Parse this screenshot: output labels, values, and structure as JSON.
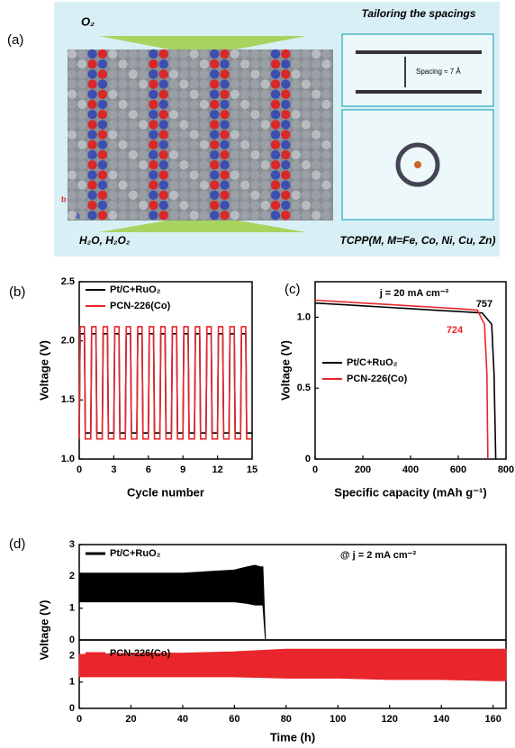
{
  "illustration": {
    "panel": "(a)",
    "top_label": "O₂",
    "bottom_label": "H₂O, H₂O₂",
    "right_title": "Tailoring the spacings",
    "spacing_label": "Spacing ≈ 7 Å",
    "right_caption": "TCPP(M, M=Fe, Co, Ni, Cu, Zn)",
    "axis_b": "b",
    "axis_a": "a"
  },
  "chart_data": [
    {
      "type": "line",
      "panel": "(b)",
      "x_label": "Cycle number",
      "y_label": "Voltage (V)",
      "xlim": [
        0,
        15
      ],
      "ylim": [
        1.0,
        2.5
      ],
      "xticks": [
        0,
        3,
        6,
        9,
        12,
        15
      ],
      "yticks": [
        {
          "value": 1.0,
          "label": "1.0"
        },
        1.5,
        {
          "value": 2.0,
          "label": "2.0"
        },
        2.5
      ],
      "x": [
        0,
        0.08,
        0.45,
        0.53,
        1,
        1.08,
        1.45,
        1.53,
        2,
        2.08,
        2.45,
        2.53,
        3,
        3.08,
        3.45,
        3.53,
        4,
        4.08,
        4.45,
        4.53,
        5,
        5.08,
        5.45,
        5.53,
        6,
        6.08,
        6.45,
        6.53,
        7,
        7.08,
        7.45,
        7.53,
        8,
        8.08,
        8.45,
        8.53,
        9,
        9.08,
        9.45,
        9.53,
        10,
        10.08,
        10.45,
        10.53,
        11,
        11.08,
        11.45,
        11.53,
        12,
        12.08,
        12.45,
        12.53,
        13,
        13.08,
        13.45,
        13.53,
        14,
        14.08,
        14.45,
        14.53,
        15
      ],
      "series": [
        {
          "name": "Pt/C+RuO₂",
          "color": "#000000",
          "values": [
            1.22,
            2.06,
            2.06,
            1.22,
            1.22,
            2.06,
            2.06,
            1.22,
            1.22,
            2.06,
            2.06,
            1.22,
            1.22,
            2.06,
            2.06,
            1.22,
            1.22,
            2.06,
            2.06,
            1.22,
            1.22,
            2.06,
            2.06,
            1.22,
            1.22,
            2.06,
            2.06,
            1.22,
            1.22,
            2.06,
            2.06,
            1.22,
            1.22,
            2.06,
            2.06,
            1.22,
            1.22,
            2.06,
            2.06,
            1.22,
            1.22,
            2.06,
            2.06,
            1.22,
            1.22,
            2.06,
            2.06,
            1.22,
            1.22,
            2.06,
            2.06,
            1.22,
            1.22,
            2.06,
            2.06,
            1.22,
            1.22,
            2.06,
            2.06,
            1.22,
            1.22
          ]
        },
        {
          "name": "PCN-226(Co)",
          "color": "#e8262b",
          "values": [
            1.17,
            2.12,
            2.12,
            1.17,
            1.17,
            2.12,
            2.12,
            1.17,
            1.17,
            2.12,
            2.12,
            1.17,
            1.17,
            2.12,
            2.12,
            1.17,
            1.17,
            2.12,
            2.12,
            1.17,
            1.17,
            2.12,
            2.12,
            1.17,
            1.17,
            2.12,
            2.12,
            1.17,
            1.17,
            2.12,
            2.12,
            1.17,
            1.17,
            2.12,
            2.12,
            1.17,
            1.17,
            2.12,
            2.12,
            1.17,
            1.17,
            2.12,
            2.12,
            1.17,
            1.17,
            2.12,
            2.12,
            1.17,
            1.17,
            2.12,
            2.12,
            1.17,
            1.17,
            2.12,
            2.12,
            1.17,
            1.17,
            2.12,
            2.12,
            1.17,
            1.17
          ]
        }
      ]
    },
    {
      "type": "line",
      "panel": "(c)",
      "x_label": "Specific capacity (mAh g⁻¹)",
      "y_label": "Voltage (V)",
      "xlim": [
        0,
        800
      ],
      "ylim": [
        0,
        1.25
      ],
      "xticks": [
        0,
        200,
        400,
        600,
        800
      ],
      "yticks": [
        0,
        0.5,
        {
          "value": 1.0,
          "label": "1.0"
        }
      ],
      "annotations": [
        {
          "text": "j = 20 mA cm⁻²",
          "color": "#000000"
        },
        {
          "text": "757",
          "color": "#000000"
        },
        {
          "text": "724",
          "color": "#e8262b"
        }
      ],
      "series": [
        {
          "name": "Pt/C+RuO₂",
          "color": "#000000",
          "x": [
            0,
            100,
            200,
            300,
            400,
            500,
            600,
            700,
            740,
            750,
            757
          ],
          "values": [
            1.1,
            1.09,
            1.08,
            1.07,
            1.06,
            1.05,
            1.04,
            1.03,
            0.95,
            0.6,
            0
          ]
        },
        {
          "name": "PCN-226(Co)",
          "color": "#e8262b",
          "x": [
            0,
            100,
            200,
            300,
            400,
            500,
            600,
            680,
            710,
            720,
            724
          ],
          "values": [
            1.12,
            1.11,
            1.1,
            1.09,
            1.08,
            1.07,
            1.06,
            1.05,
            0.95,
            0.6,
            0
          ]
        }
      ]
    },
    {
      "type": "band",
      "panel": "(d)",
      "y_label": "Voltage (V)",
      "xlim": [
        0,
        165
      ],
      "ylim": [
        0,
        3
      ],
      "yticks": [
        0,
        1,
        2,
        3
      ],
      "annotations": [
        {
          "text": "@ j = 2 mA cm⁻²",
          "color": "#000000"
        }
      ],
      "x": [
        0,
        10,
        20,
        30,
        40,
        50,
        60,
        65,
        68,
        70,
        71,
        72
      ],
      "series": [
        {
          "name": "Pt/C+RuO₂",
          "color": "#000000",
          "upper": [
            2.1,
            2.1,
            2.1,
            2.1,
            2.1,
            2.15,
            2.2,
            2.3,
            2.35,
            2.3,
            2.3,
            0
          ],
          "lower": [
            1.2,
            1.2,
            1.2,
            1.2,
            1.2,
            1.2,
            1.2,
            1.15,
            1.1,
            1.1,
            1.1,
            0
          ]
        }
      ]
    },
    {
      "type": "band",
      "x_label": "Time (h)",
      "xlim": [
        0,
        165
      ],
      "ylim": [
        0,
        2.6
      ],
      "xticks": [
        0,
        20,
        40,
        60,
        80,
        100,
        120,
        140,
        160
      ],
      "yticks": [
        0,
        1,
        2
      ],
      "x": [
        0,
        20,
        40,
        60,
        80,
        100,
        120,
        140,
        160,
        165
      ],
      "series": [
        {
          "name": "PCN-226(Co)",
          "color": "#e8262b",
          "upper": [
            2.05,
            2.1,
            2.1,
            2.15,
            2.25,
            2.25,
            2.25,
            2.25,
            2.25,
            2.25
          ],
          "lower": [
            1.2,
            1.2,
            1.2,
            1.2,
            1.15,
            1.15,
            1.1,
            1.1,
            1.05,
            1.05
          ]
        }
      ]
    }
  ]
}
